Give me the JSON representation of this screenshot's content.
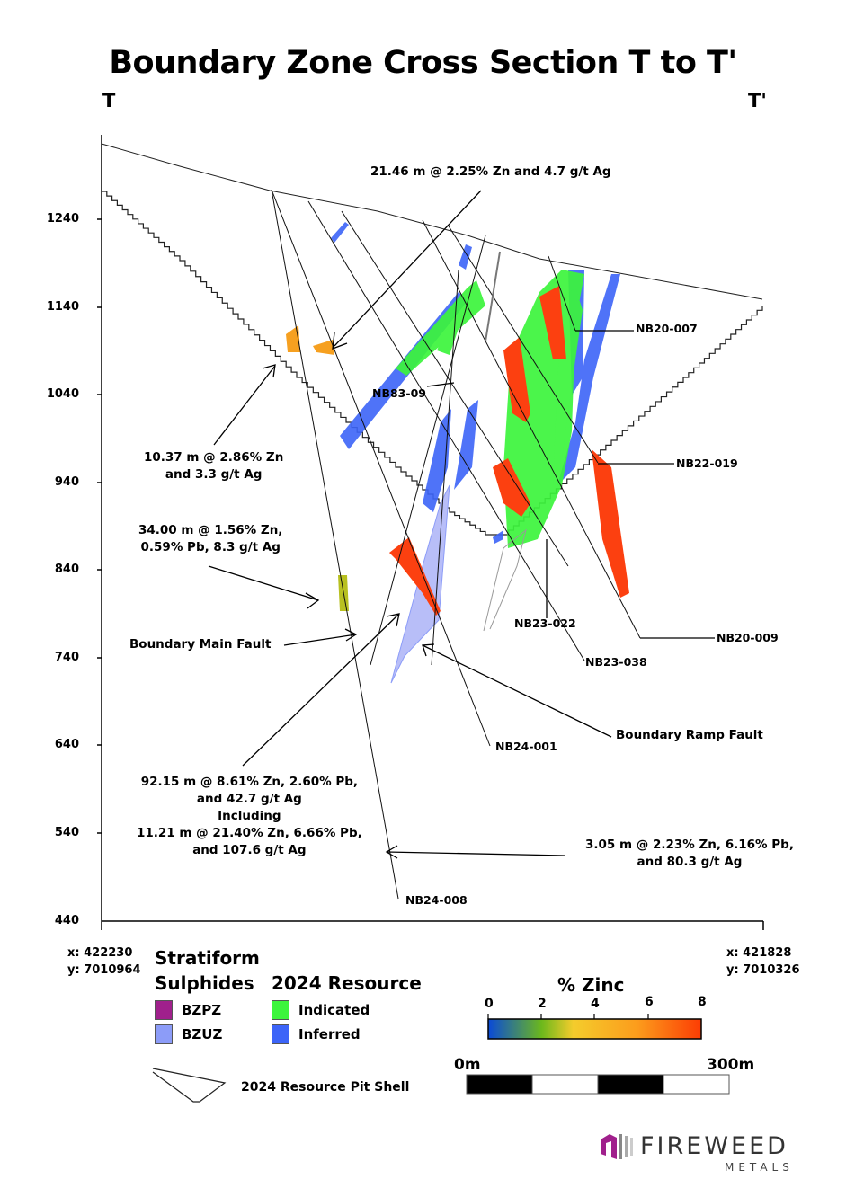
{
  "title": "Boundary Zone Cross Section T to T'",
  "section_start": "T",
  "section_end": "T'",
  "y_axis_ticks": [
    "1240",
    "1140",
    "1040",
    "940",
    "840",
    "740",
    "640",
    "540",
    "440"
  ],
  "annotations": [
    {
      "lines": [
        "21.46 m @ 2.25% Zn and 4.7 g/t Ag"
      ]
    },
    {
      "lines": [
        "10.37 m @ 2.86% Zn",
        "and 3.3 g/t Ag"
      ]
    },
    {
      "lines": [
        "34.00 m @ 1.56% Zn,",
        "0.59% Pb, 8.3 g/t Ag"
      ]
    },
    {
      "lines": [
        "Boundary Main Fault"
      ]
    },
    {
      "lines": [
        "92.15 m @ 8.61% Zn, 2.60% Pb,",
        "and 42.7 g/t Ag",
        "Including",
        "11.21 m @ 21.40% Zn, 6.66% Pb,",
        "and 107.6 g/t Ag"
      ]
    },
    {
      "lines": [
        "3.05 m @ 2.23% Zn, 6.16% Pb,",
        "and 80.3 g/t Ag"
      ]
    },
    {
      "lines": [
        "Boundary Ramp Fault"
      ]
    }
  ],
  "drill_holes": [
    "NB20-007",
    "NB83-09",
    "NB22-019",
    "NB23-022",
    "NB20-009",
    "NB23-038",
    "NB24-001",
    "NB24-008"
  ],
  "coords_left": {
    "x": "x: 422230",
    "y": "y: 7010964"
  },
  "coords_right": {
    "x": "x: 421828",
    "y": "y: 7010326"
  },
  "legend": {
    "stratiform_title": [
      "Stratiform",
      "Sulphides"
    ],
    "stratiform_items": [
      {
        "label": "BZPZ",
        "color": "#a0208c"
      },
      {
        "label": "BZUZ",
        "color": "#8c9cf8"
      }
    ],
    "resource_title": "2024 Resource",
    "resource_items": [
      {
        "label": "Indicated",
        "color": "#3cf53c"
      },
      {
        "label": "Inferred",
        "color": "#3c64f8"
      }
    ],
    "pit_shell_label": "2024 Resource Pit Shell"
  },
  "colorbar": {
    "title": "% Zinc",
    "ticks": [
      "0",
      "2",
      "4",
      "6",
      "8"
    ],
    "min": 0,
    "max": 8,
    "colors": [
      "#0a4ad8",
      "#6cb81c",
      "#f4cc2c",
      "#fc9c1c",
      "#fc3c04"
    ]
  },
  "scale_bar": {
    "start": "0m",
    "end": "300m"
  },
  "logo": {
    "name": "FIREWEED",
    "sub": "METALS"
  }
}
